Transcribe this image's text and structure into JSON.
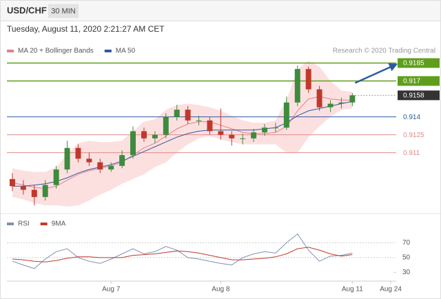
{
  "chart_data": {
    "type": "candlestick",
    "title": "USD/CHF",
    "timeframe": "30 MIN",
    "subtitle": "Tuesday, August 11, 2020 2:21:27 AM CET",
    "source": "Research © 2020 Trading Central",
    "up_color": "#3d8b3d",
    "down_color": "#c0392b",
    "open": [
      0.9088,
      0.9082,
      0.9079,
      0.9073,
      0.9083,
      0.9096,
      0.9114,
      0.9105,
      0.9102,
      0.9096,
      0.9099,
      0.9108,
      0.9128,
      0.9122,
      0.9125,
      0.914,
      0.9146,
      0.9137,
      0.9137,
      0.9128,
      0.9125,
      0.9122,
      0.9122,
      0.9127,
      0.9131,
      0.9131,
      0.9152,
      0.918,
      0.9163,
      0.9148,
      0.9151,
      0.9152
    ],
    "high": [
      0.9093,
      0.9087,
      0.9083,
      0.9087,
      0.9099,
      0.912,
      0.9117,
      0.911,
      0.9105,
      0.9102,
      0.9112,
      0.9132,
      0.9131,
      0.9128,
      0.9143,
      0.915,
      0.9149,
      0.9141,
      0.914,
      0.9147,
      0.9128,
      0.9126,
      0.913,
      0.9134,
      0.9135,
      0.9157,
      0.9183,
      0.9182,
      0.9166,
      0.9154,
      0.9156,
      0.916
    ],
    "low": [
      0.9078,
      0.9075,
      0.9066,
      0.907,
      0.908,
      0.9093,
      0.9102,
      0.9099,
      0.9093,
      0.9094,
      0.9097,
      0.9105,
      0.9119,
      0.9118,
      0.9122,
      0.9137,
      0.9134,
      0.9133,
      0.9125,
      0.9121,
      0.9116,
      0.9117,
      0.9119,
      0.9124,
      0.9127,
      0.9129,
      0.9149,
      0.916,
      0.9145,
      0.9144,
      0.9147,
      0.9149
    ],
    "close": [
      0.9082,
      0.9079,
      0.9073,
      0.9083,
      0.9096,
      0.9114,
      0.9105,
      0.9102,
      0.9096,
      0.9099,
      0.9108,
      0.9128,
      0.9122,
      0.9125,
      0.914,
      0.9146,
      0.9137,
      0.9137,
      0.9128,
      0.9125,
      0.9122,
      0.9122,
      0.9127,
      0.9131,
      0.9131,
      0.9152,
      0.918,
      0.9163,
      0.9148,
      0.9151,
      0.9152,
      0.9158
    ],
    "overlays": [
      {
        "name": "MA 20 + Bollinger Bands",
        "color": "#e57f8a",
        "band_color": "#fbd6d6",
        "values": [
          0.9085,
          0.9083,
          0.9081,
          0.908,
          0.9082,
          0.9087,
          0.9092,
          0.9095,
          0.9097,
          0.9099,
          0.9102,
          0.9108,
          0.9114,
          0.9118,
          0.9124,
          0.913,
          0.9134,
          0.9136,
          0.9136,
          0.9133,
          0.913,
          0.9127,
          0.9126,
          0.9126,
          0.9127,
          0.9132,
          0.9145,
          0.9155,
          0.9157,
          0.9155,
          0.9154,
          0.9154
        ],
        "upper": [
          0.9097,
          0.9095,
          0.9094,
          0.9094,
          0.9098,
          0.9109,
          0.9118,
          0.912,
          0.9119,
          0.9119,
          0.912,
          0.9128,
          0.9136,
          0.9138,
          0.9146,
          0.915,
          0.9151,
          0.915,
          0.9148,
          0.9145,
          0.9141,
          0.9137,
          0.9135,
          0.9135,
          0.9137,
          0.9154,
          0.918,
          0.9187,
          0.9182,
          0.917,
          0.9162,
          0.9161
        ],
        "lower": [
          0.9073,
          0.9071,
          0.9068,
          0.9066,
          0.9066,
          0.9065,
          0.9066,
          0.907,
          0.9075,
          0.9079,
          0.9084,
          0.9088,
          0.9092,
          0.9098,
          0.9102,
          0.911,
          0.9117,
          0.9122,
          0.9124,
          0.9121,
          0.9119,
          0.9117,
          0.9117,
          0.9117,
          0.9117,
          0.911,
          0.911,
          0.9123,
          0.9132,
          0.914,
          0.9146,
          0.9147
        ]
      },
      {
        "name": "MA 50",
        "color": "#2c5aa0",
        "values": [
          0.9082,
          0.9082,
          0.9083,
          0.9084,
          0.9086,
          0.9089,
          0.9093,
          0.9096,
          0.9098,
          0.91,
          0.9103,
          0.9107,
          0.9111,
          0.9115,
          0.9119,
          0.9123,
          0.9126,
          0.9128,
          0.9129,
          0.9129,
          0.9129,
          0.9129,
          0.9129,
          0.913,
          0.9131,
          0.9135,
          0.9141,
          0.9145,
          0.9147,
          0.9149,
          0.9151,
          0.9153
        ]
      }
    ],
    "levels": [
      {
        "value": 0.9185,
        "color": "#5f9e1c",
        "boxed": true
      },
      {
        "value": 0.917,
        "color": "#5f9e1c",
        "boxed": true
      },
      {
        "value": 0.914,
        "color": "#2c5aa0",
        "boxed": false
      },
      {
        "value": 0.9125,
        "color": "#e08a8a",
        "boxed": false
      },
      {
        "value": 0.911,
        "color": "#e08a8a",
        "boxed": false
      }
    ],
    "last_price": 0.9158,
    "last_color": "#333333",
    "ylim": [
      0.9062,
      0.9202
    ],
    "xlim": [
      -0.5,
      35
    ],
    "xticks": [
      {
        "value": 9,
        "label": "Aug 7"
      },
      {
        "value": 19,
        "label": "Aug 8"
      },
      {
        "value": 31,
        "label": "Aug 11"
      },
      {
        "value": 34.5,
        "label": "Aug 24"
      }
    ],
    "indicator": {
      "type": "line",
      "series": [
        {
          "name": "RSI",
          "color": "#7f8fb0",
          "values": [
            45,
            40,
            35,
            48,
            58,
            62,
            50,
            45,
            42,
            48,
            55,
            62,
            55,
            58,
            65,
            60,
            50,
            48,
            45,
            42,
            40,
            50,
            55,
            58,
            56,
            70,
            82,
            60,
            45,
            52,
            53,
            56
          ]
        },
        {
          "name": "9MA",
          "color": "#c0392b",
          "values": [
            48,
            47,
            45,
            44,
            46,
            49,
            51,
            51,
            50,
            50,
            50,
            53,
            54,
            55,
            57,
            59,
            58,
            56,
            53,
            50,
            47,
            47,
            48,
            49,
            51,
            55,
            62,
            64,
            60,
            55,
            52,
            54
          ]
        }
      ],
      "ylim": [
        20,
        90
      ],
      "yticks": [
        70,
        50,
        30
      ]
    }
  }
}
